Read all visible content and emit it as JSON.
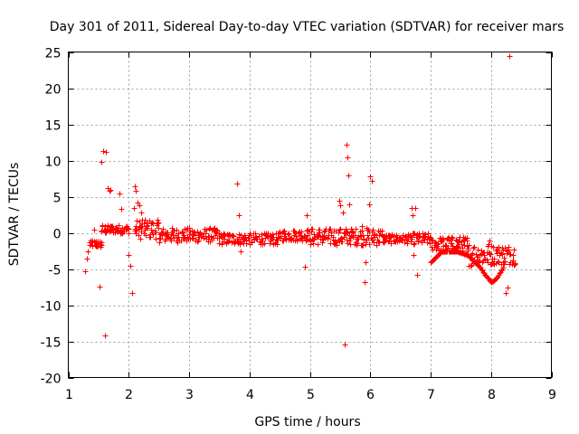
{
  "chart_data": {
    "type": "scatter",
    "title": "Day 301 of 2011, Sidereal Day-to-day VTEC variation (SDTVAR) for receiver mars",
    "xlabel": "GPS time / hours",
    "ylabel": "SDTVAR / TECUs",
    "xlim": [
      1,
      9
    ],
    "ylim": [
      -20,
      25
    ],
    "xticks": [
      "1",
      "2",
      "3",
      "4",
      "5",
      "6",
      "7",
      "8",
      "9"
    ],
    "yticks": [
      "-20",
      "-15",
      "-10",
      "-5",
      "0",
      "5",
      "10",
      "15",
      "20",
      "25"
    ],
    "grid": true,
    "marker": "+",
    "color": "#ff0000",
    "dense_bands": [
      {
        "x_start": 1.35,
        "x_end": 1.55,
        "y_center": -1.5,
        "half_width": 0.5
      },
      {
        "x_start": 1.55,
        "x_end": 2.0,
        "y_center": 0.5,
        "half_width": 0.6
      },
      {
        "x_start": 2.1,
        "x_end": 2.5,
        "y_center": 0.5,
        "half_width": 1.3
      },
      {
        "x_start": 2.5,
        "x_end": 3.5,
        "y_center": -0.3,
        "half_width": 1.0
      },
      {
        "x_start": 3.5,
        "x_end": 4.5,
        "y_center": -0.8,
        "half_width": 0.8
      },
      {
        "x_start": 4.5,
        "x_end": 5.0,
        "y_center": -0.3,
        "half_width": 0.8
      },
      {
        "x_start": 5.0,
        "x_end": 6.2,
        "y_center": -0.5,
        "half_width": 1.2
      },
      {
        "x_start": 6.2,
        "x_end": 6.7,
        "y_center": -0.8,
        "half_width": 0.6
      },
      {
        "x_start": 6.7,
        "x_end": 7.0,
        "y_center": -0.8,
        "half_width": 0.8
      },
      {
        "x_start": 7.0,
        "x_end": 7.6,
        "y_center": -1.5,
        "half_width": 1.0
      },
      {
        "x_start": 7.6,
        "x_end": 8.0,
        "y_center": -3.0,
        "half_width": 1.6
      },
      {
        "x_start": 8.0,
        "x_end": 8.4,
        "y_center": -3.0,
        "half_width": 1.4
      }
    ],
    "curve": {
      "name": "lower arc",
      "x": [
        7.0,
        7.2,
        7.4,
        7.6,
        7.8,
        7.9,
        8.0,
        8.1,
        8.2
      ],
      "y": [
        -4.0,
        -2.5,
        -2.5,
        -3.0,
        -4.5,
        -5.8,
        -6.8,
        -6.2,
        -4.8
      ]
    },
    "points": {
      "x": [
        1.28,
        1.3,
        1.32,
        1.42,
        1.52,
        1.55,
        1.58,
        1.6,
        1.62,
        1.65,
        1.68,
        1.7,
        1.85,
        1.88,
        2.0,
        2.02,
        2.05,
        2.08,
        2.1,
        2.12,
        2.15,
        2.18,
        2.2,
        2.22,
        3.8,
        3.82,
        3.84,
        3.85,
        4.92,
        4.95,
        5.0,
        5.48,
        5.5,
        5.55,
        5.58,
        5.6,
        5.62,
        5.64,
        5.65,
        5.86,
        5.9,
        5.92,
        5.95,
        5.98,
        6.0,
        6.02,
        6.68,
        6.7,
        6.72,
        6.75,
        6.78,
        7.98,
        8.25,
        8.28,
        8.3
      ],
      "y": [
        -5.3,
        -3.5,
        -2.5,
        0.5,
        -7.4,
        9.8,
        11.3,
        -14.2,
        11.2,
        6.2,
        5.8,
        5.9,
        5.5,
        3.3,
        -3.0,
        -4.5,
        -8.3,
        3.5,
        6.5,
        5.8,
        4.2,
        3.8,
        2.8,
        1.8,
        6.8,
        2.5,
        -1.5,
        -2.5,
        -4.7,
        2.5,
        -1.0,
        4.5,
        3.8,
        2.8,
        -15.4,
        12.2,
        10.5,
        8.0,
        4.0,
        1.0,
        -6.8,
        -4.0,
        0.5,
        4.0,
        7.8,
        7.2,
        3.5,
        2.5,
        -3.0,
        3.5,
        -5.8,
        -1.0,
        -8.3,
        -7.5,
        24.5
      ]
    }
  }
}
